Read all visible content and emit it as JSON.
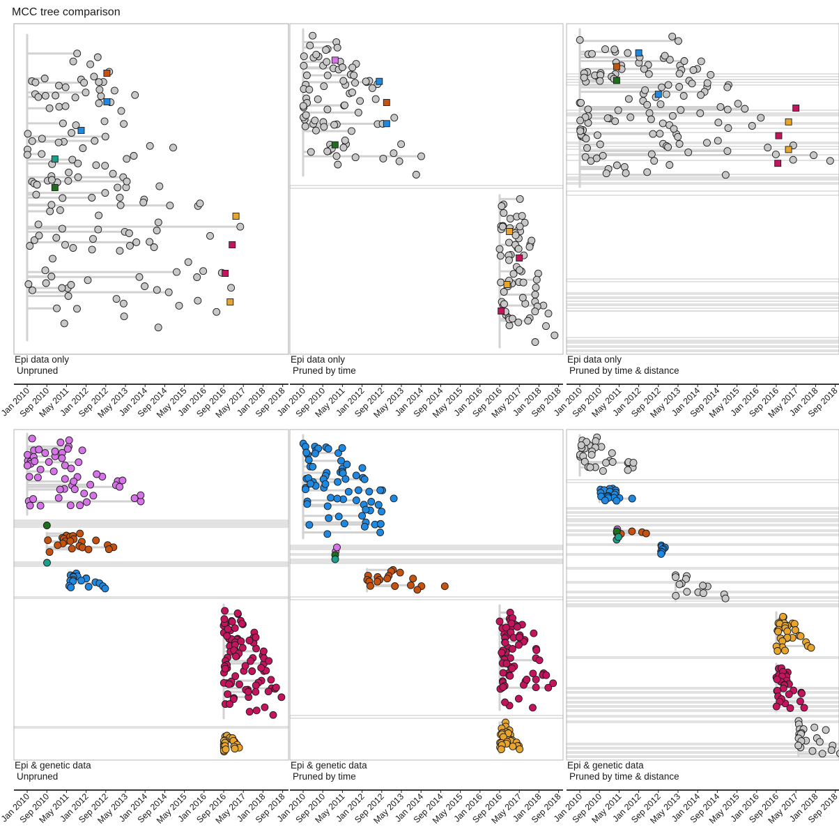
{
  "title": "MCC tree comparison",
  "colors": {
    "gray": "#c8c8c8",
    "purple": "#d673e6",
    "green": "#1d6e1d",
    "orange": "#c5520f",
    "teal": "#1aa08a",
    "blue": "#1f88e0",
    "magenta": "#c4145e",
    "yellow": "#e8a52e"
  },
  "chart_data": {
    "type": "scatter",
    "x_axis": {
      "type": "date",
      "ticks": [
        "Jan 2010",
        "Sep 2010",
        "May 2011",
        "Jan 2012",
        "Sep 2012",
        "May 2013",
        "Jan 2014",
        "Sep 2014",
        "May 2015",
        "Jan 2016",
        "Sep 2016",
        "May 2017",
        "Jan 2018",
        "Sep 2018"
      ],
      "range": [
        "2009-12-01",
        "2019-03-01"
      ]
    },
    "grid": false,
    "panels": [
      {
        "strip": [
          "Epi data only",
          "Unpruned"
        ],
        "clusters": [
          {
            "color": "gray",
            "x_range": [
              "2010-01-01",
              "2018-10-01"
            ],
            "points": 140,
            "squares": [
              {
                "color": "orange",
                "x": "2012-09-15"
              },
              {
                "color": "blue",
                "x": "2012-09-15"
              },
              {
                "color": "blue",
                "x": "2011-11-01"
              },
              {
                "color": "teal",
                "x": "2010-12-10"
              },
              {
                "color": "green",
                "x": "2010-12-10"
              },
              {
                "color": "yellow",
                "x": "2017-02-01"
              },
              {
                "color": "magenta",
                "x": "2016-12-15"
              },
              {
                "color": "magenta",
                "x": "2016-09-20"
              },
              {
                "color": "yellow",
                "x": "2016-11-20"
              }
            ]
          }
        ]
      },
      {
        "strip": [
          "Epi data only",
          "Pruned by time"
        ],
        "clusters": [
          {
            "color": "gray",
            "x_range": [
              "2010-01-01",
              "2014-05-01"
            ],
            "points": 80,
            "squares": [
              {
                "color": "purple",
                "x": "2011-02-01"
              },
              {
                "color": "blue",
                "x": "2012-08-01"
              },
              {
                "color": "orange",
                "x": "2012-11-01"
              },
              {
                "color": "blue",
                "x": "2012-11-01"
              },
              {
                "color": "green",
                "x": "2011-02-01"
              }
            ]
          },
          {
            "color": "gray",
            "x_range": [
              "2016-09-01",
              "2018-10-01"
            ],
            "points": 70,
            "squares": [
              {
                "color": "yellow",
                "x": "2017-01-01"
              },
              {
                "color": "magenta",
                "x": "2017-05-01"
              },
              {
                "color": "yellow",
                "x": "2016-12-01"
              },
              {
                "color": "magenta",
                "x": "2016-09-20"
              }
            ]
          }
        ]
      },
      {
        "strip": [
          "Epi data only",
          "Pruned by time & distance"
        ],
        "clusters": [
          {
            "color": "gray",
            "x_range": [
              "2010-01-01",
              "2019-02-01"
            ],
            "points": 130,
            "squares": [
              {
                "color": "blue",
                "x": "2012-01-01"
              },
              {
                "color": "orange",
                "x": "2011-04-01"
              },
              {
                "color": "green",
                "x": "2011-04-01"
              },
              {
                "color": "blue",
                "x": "2012-09-01"
              },
              {
                "color": "magenta",
                "x": "2017-05-01"
              },
              {
                "color": "yellow",
                "x": "2017-02-01"
              },
              {
                "color": "magenta",
                "x": "2016-10-01"
              },
              {
                "color": "yellow",
                "x": "2017-02-01"
              },
              {
                "color": "magenta",
                "x": "2016-09-20"
              }
            ]
          }
        ]
      },
      {
        "strip": [
          "Epi & genetic data",
          "Unpruned"
        ],
        "clusters": [
          {
            "color": "purple",
            "x_range": [
              "2010-01-01",
              "2014-06-01"
            ],
            "points": 55
          },
          {
            "color": "green",
            "x_range": [
              "2010-09-01",
              "2010-10-01"
            ],
            "points": 1
          },
          {
            "color": "orange",
            "x_range": [
              "2010-09-01",
              "2014-01-01"
            ],
            "points": 22
          },
          {
            "color": "teal",
            "x_range": [
              "2010-09-01",
              "2010-10-01"
            ],
            "points": 1
          },
          {
            "color": "blue",
            "x_range": [
              "2011-06-01",
              "2012-11-01"
            ],
            "points": 18
          },
          {
            "color": "magenta",
            "x_range": [
              "2016-09-01",
              "2018-12-01"
            ],
            "points": 90
          },
          {
            "color": "yellow",
            "x_range": [
              "2016-09-01",
              "2017-06-01"
            ],
            "points": 25
          }
        ]
      },
      {
        "strip": [
          "Epi & genetic data",
          "Pruned by time"
        ],
        "clusters": [
          {
            "color": "blue",
            "x_range": [
              "2010-01-01",
              "2013-10-01"
            ],
            "points": 70
          },
          {
            "color": "purple",
            "x_range": [
              "2011-02-01",
              "2011-03-01"
            ],
            "points": 2
          },
          {
            "color": "green",
            "x_range": [
              "2011-02-01",
              "2011-03-01"
            ],
            "points": 1
          },
          {
            "color": "teal",
            "x_range": [
              "2011-02-01",
              "2011-03-01"
            ],
            "points": 1
          },
          {
            "color": "orange",
            "x_range": [
              "2012-03-01",
              "2015-02-01"
            ],
            "points": 18
          },
          {
            "color": "magenta",
            "x_range": [
              "2016-09-01",
              "2018-10-01"
            ],
            "points": 70
          },
          {
            "color": "yellow",
            "x_range": [
              "2016-09-01",
              "2017-07-01"
            ],
            "points": 30
          }
        ]
      },
      {
        "strip": [
          "Epi & genetic data",
          "Pruned by time & distance"
        ],
        "clusters": [
          {
            "color": "gray",
            "x_range": [
              "2010-01-01",
              "2012-03-01"
            ],
            "points": 30
          },
          {
            "color": "blue",
            "x_range": [
              "2010-09-01",
              "2012-01-01"
            ],
            "points": 20
          },
          {
            "color": "purple",
            "x_range": [
              "2011-04-01",
              "2011-05-01"
            ],
            "points": 1
          },
          {
            "color": "orange",
            "x_range": [
              "2011-04-01",
              "2013-02-01"
            ],
            "points": 6
          },
          {
            "color": "green",
            "x_range": [
              "2011-04-01",
              "2011-05-01"
            ],
            "points": 1
          },
          {
            "color": "teal",
            "x_range": [
              "2011-04-01",
              "2011-06-01"
            ],
            "points": 2
          },
          {
            "color": "blue",
            "x_range": [
              "2012-10-01",
              "2013-02-01"
            ],
            "points": 8
          },
          {
            "color": "gray",
            "x_range": [
              "2013-04-01",
              "2015-04-01"
            ],
            "points": 14
          },
          {
            "color": "yellow",
            "x_range": [
              "2016-09-01",
              "2018-02-01"
            ],
            "points": 30
          },
          {
            "color": "magenta",
            "x_range": [
              "2016-09-01",
              "2017-10-01"
            ],
            "points": 30
          },
          {
            "color": "gray",
            "x_range": [
              "2017-06-01",
              "2019-02-01"
            ],
            "points": 22
          }
        ]
      }
    ]
  }
}
